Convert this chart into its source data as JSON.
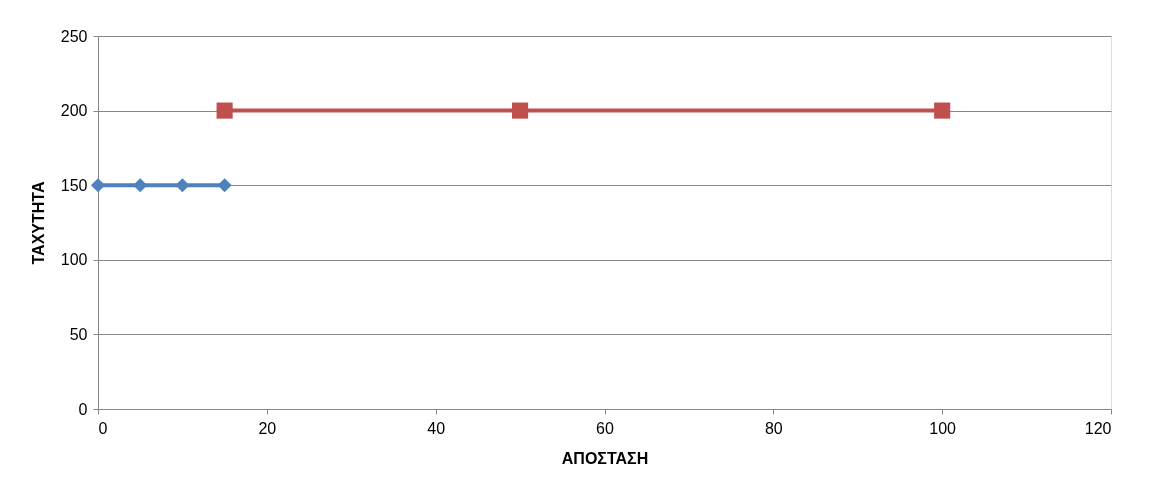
{
  "chart_data": {
    "type": "line",
    "xlabel": "ΑΠΟΣΤΑΣΗ",
    "ylabel": "ΤΑΧΥΤΗΤΑ",
    "xlim": [
      0,
      120
    ],
    "xticks": [
      0,
      20,
      40,
      60,
      80,
      100,
      120
    ],
    "ylim": [
      0,
      250
    ],
    "yticks": [
      0,
      50,
      100,
      150,
      200,
      250
    ],
    "grid": "y",
    "legend": false,
    "line_style": "solid",
    "series": [
      {
        "color": "#4f81bd",
        "marker": "diamond",
        "x": [
          0,
          5,
          10,
          15
        ],
        "values": [
          150,
          150,
          150,
          150
        ]
      },
      {
        "color": "#c0504d",
        "marker": "square",
        "x": [
          15,
          50,
          100
        ],
        "values": [
          200,
          200,
          200
        ]
      }
    ]
  }
}
